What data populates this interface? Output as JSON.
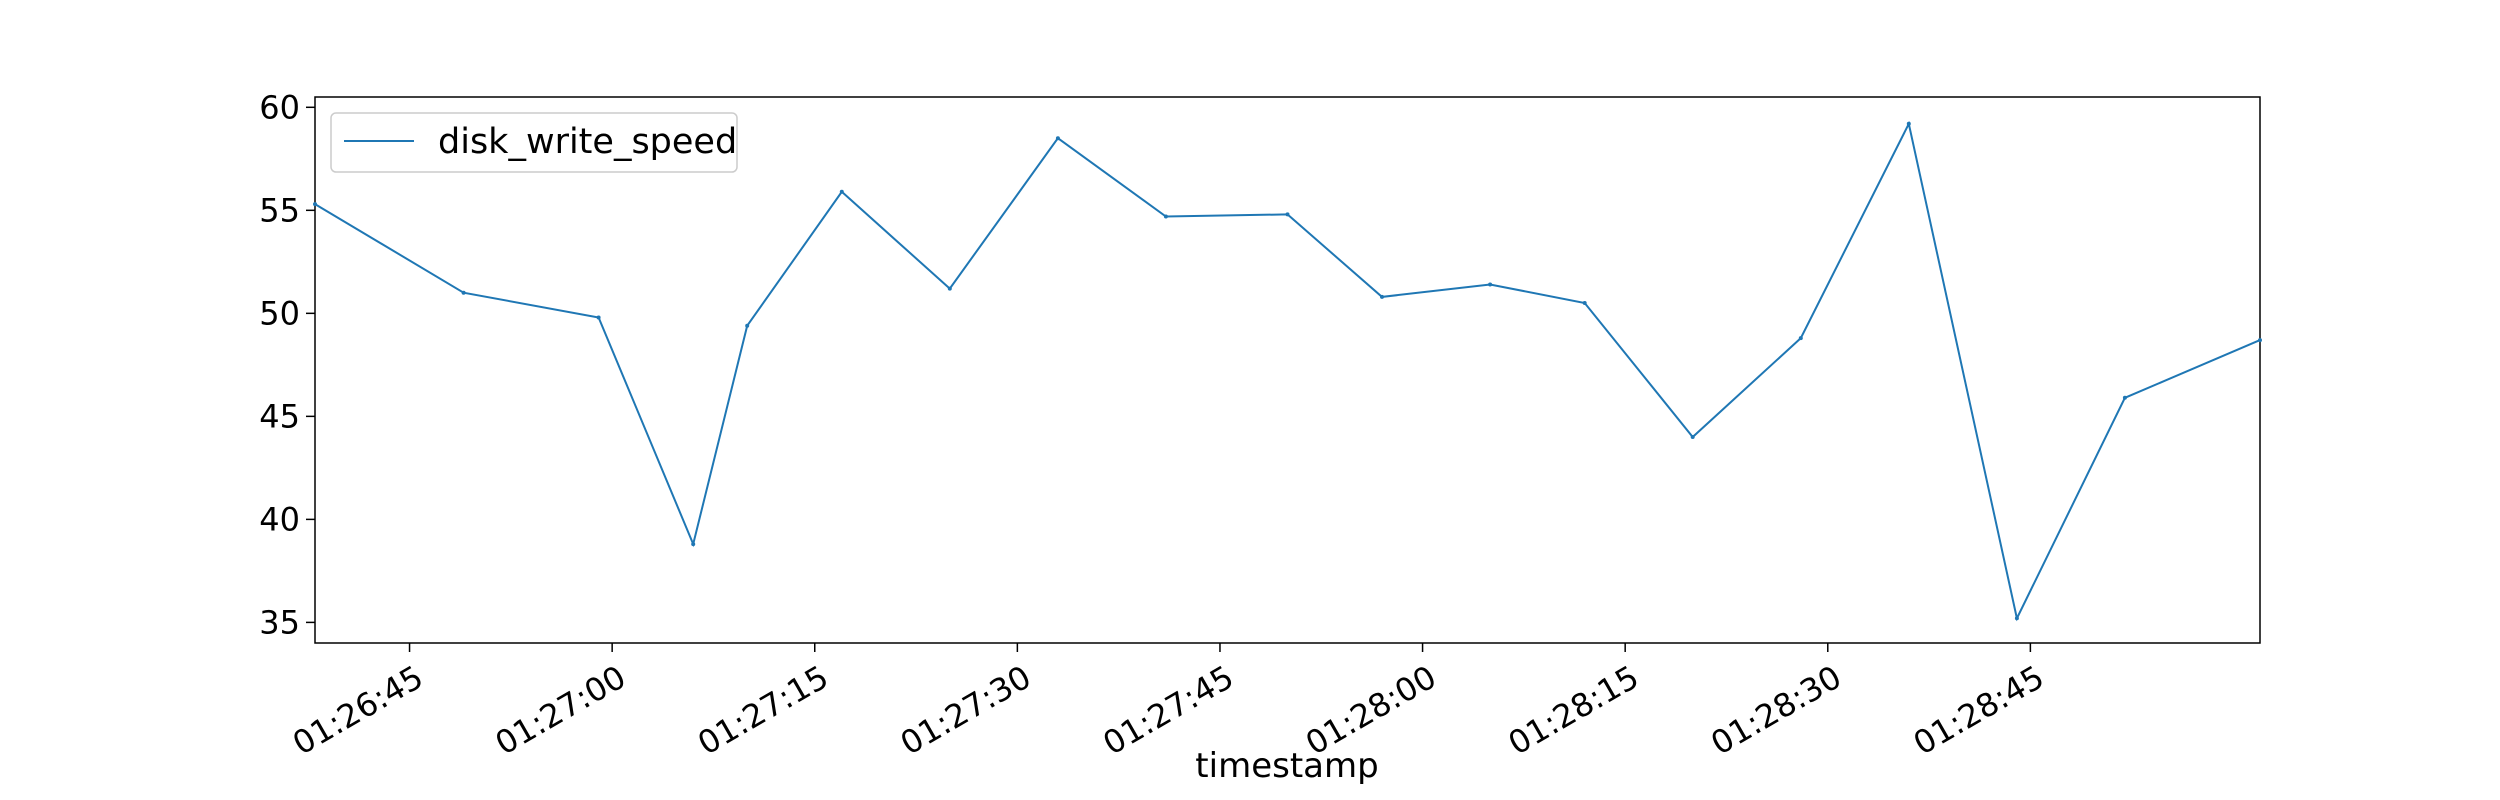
{
  "chart_data": {
    "type": "line",
    "title": "",
    "xlabel": "timestamp",
    "ylabel": "",
    "x": [
      "01:26:38",
      "01:26:49",
      "01:26:59",
      "01:27:06",
      "01:27:10",
      "01:27:17",
      "01:27:25",
      "01:27:33",
      "01:27:41",
      "01:27:50",
      "01:27:57",
      "01:28:05",
      "01:28:12",
      "01:28:20",
      "01:28:28",
      "01:28:36",
      "01:28:44",
      "01:28:52",
      "01:29:02"
    ],
    "series": [
      {
        "name": "disk_write_speed",
        "color": "#1f77b4",
        "values": [
          55.3,
          51.0,
          49.8,
          38.8,
          49.4,
          55.9,
          51.2,
          58.5,
          54.7,
          54.8,
          50.8,
          51.4,
          50.5,
          44.0,
          48.8,
          59.2,
          35.2,
          45.9,
          48.7
        ]
      }
    ],
    "x_range": [
      "01:26:38",
      "01:29:02"
    ],
    "ylim": [
      34,
      60.5
    ],
    "x_ticks": [
      "01:26:45",
      "01:27:00",
      "01:27:15",
      "01:27:30",
      "01:27:45",
      "01:28:00",
      "01:28:15",
      "01:28:30",
      "01:28:45"
    ],
    "y_ticks": [
      35,
      40,
      45,
      50,
      55,
      60
    ],
    "grid": false,
    "legend": "top-left"
  }
}
